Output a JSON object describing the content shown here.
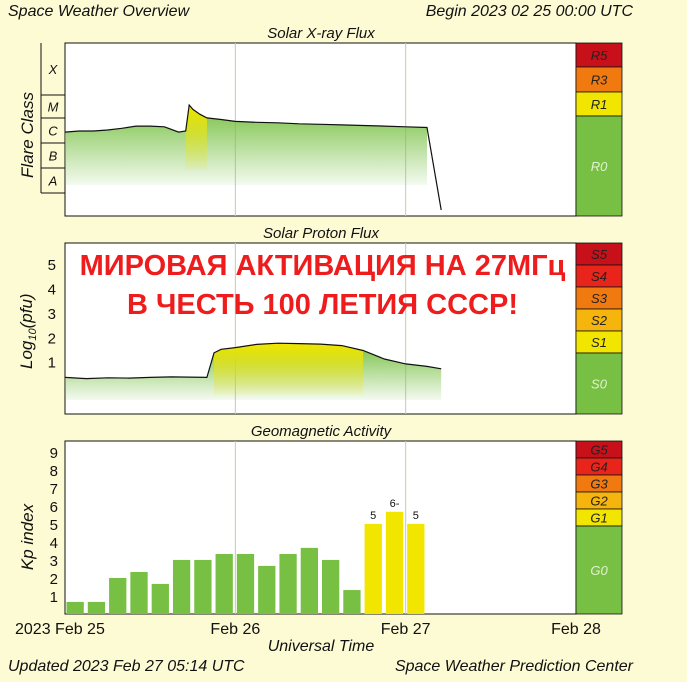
{
  "header": {
    "title": "Space Weather Overview",
    "begin": "Begin 2023 02 25 00:00 UTC"
  },
  "footer": {
    "updated": "Updated 2023 Feb 27 05:14 UTC",
    "source": "Space Weather Prediction Center"
  },
  "overlay": {
    "line1": "МИРОВАЯ АКТИВАЦИЯ НА 27МГц",
    "line2": "В ЧЕСТЬ 100 ЛЕТИЯ СССР!"
  },
  "colors": {
    "background": "#fdfbd4",
    "green": "#77c043",
    "yellow": "#f2e600",
    "amber": "#f5b50c",
    "orange": "#f17a10",
    "red": "#e8241b",
    "darkred": "#c8101a",
    "overlay_text": "#ee1c1c"
  },
  "chart_data": [
    {
      "type": "area",
      "title": "Solar X-ray Flux",
      "ylabel": "Flare Class",
      "y_scale": "log",
      "ytick_labels": [
        "A",
        "B",
        "C",
        "M",
        "X"
      ],
      "x": [
        "2023-02-25T00:00",
        "2023-02-25T02:00",
        "2023-02-25T04:00",
        "2023-02-25T06:00",
        "2023-02-25T08:00",
        "2023-02-25T10:00",
        "2023-02-25T12:00",
        "2023-02-25T14:00",
        "2023-02-25T16:00",
        "2023-02-25T17:00",
        "2023-02-25T17:30",
        "2023-02-25T18:00",
        "2023-02-25T19:00",
        "2023-02-25T20:00",
        "2023-02-25T22:00",
        "2023-02-26T00:00",
        "2023-02-26T03:00",
        "2023-02-26T06:00",
        "2023-02-26T09:00",
        "2023-02-26T12:00",
        "2023-02-26T15:00",
        "2023-02-26T18:00",
        "2023-02-26T21:00",
        "2023-02-27T00:00",
        "2023-02-27T03:00",
        "2023-02-27T05:00"
      ],
      "values": [
        "B9",
        "C1",
        "C1",
        "C1.1",
        "C1.3",
        "C1.6",
        "C1.6",
        "C1.5",
        "B9",
        "C1",
        "M1.1",
        "C8",
        "C5",
        "C3.5",
        "C3",
        "C2.5",
        "C2.3",
        "C2.2",
        "C2",
        "C1.9",
        "C1.8",
        "C1.7",
        "C1.6",
        "C1.5",
        "C1.4",
        "A"
      ],
      "scale_levels": [
        {
          "label": "R5",
          "color": "#c8101a"
        },
        {
          "label": "R3",
          "color": "#f17a10"
        },
        {
          "label": "R1",
          "color": "#f2e600"
        },
        {
          "label": "R0",
          "color": "#77c043"
        }
      ]
    },
    {
      "type": "area",
      "title": "Solar Proton Flux",
      "ylabel": "Log10(pfu)",
      "yticks": [
        1,
        2,
        3,
        4,
        5
      ],
      "ylim": [
        -1.1,
        5.9
      ],
      "x": [
        "2023-02-25T00:00",
        "2023-02-25T03:00",
        "2023-02-25T06:00",
        "2023-02-25T09:00",
        "2023-02-25T12:00",
        "2023-02-25T15:00",
        "2023-02-25T20:00",
        "2023-02-25T21:00",
        "2023-02-25T22:00",
        "2023-02-26T00:00",
        "2023-02-26T03:00",
        "2023-02-26T06:00",
        "2023-02-26T09:00",
        "2023-02-26T12:00",
        "2023-02-26T15:00",
        "2023-02-26T18:00",
        "2023-02-26T21:00",
        "2023-02-27T00:00",
        "2023-02-27T03:00",
        "2023-02-27T05:00"
      ],
      "values": [
        0.4,
        0.35,
        0.38,
        0.37,
        0.4,
        0.42,
        0.4,
        1.4,
        1.55,
        1.62,
        1.75,
        1.8,
        1.78,
        1.76,
        1.7,
        1.5,
        1.15,
        0.95,
        0.85,
        0.75
      ],
      "scale_levels": [
        {
          "label": "S5",
          "color": "#c8101a"
        },
        {
          "label": "S4",
          "color": "#e8241b"
        },
        {
          "label": "S3",
          "color": "#f17a10"
        },
        {
          "label": "S2",
          "color": "#f5b50c"
        },
        {
          "label": "S1",
          "color": "#f2e600"
        },
        {
          "label": "S0",
          "color": "#77c043"
        }
      ]
    },
    {
      "type": "bar",
      "title": "Geomagnetic Activity",
      "ylabel": "Kp index",
      "xlabel": "Universal Time",
      "ylim": [
        0,
        9.6
      ],
      "yticks": [
        1,
        2,
        3,
        4,
        5,
        6,
        7,
        8,
        9
      ],
      "xtick_labels": [
        "2023 Feb 25",
        "Feb 26",
        "Feb 27",
        "Feb 28"
      ],
      "categories": [
        "02-25 00",
        "02-25 03",
        "02-25 06",
        "02-25 09",
        "02-25 12",
        "02-25 15",
        "02-25 18",
        "02-25 21",
        "02-26 00",
        "02-26 03",
        "02-26 06",
        "02-26 09",
        "02-26 12",
        "02-26 15",
        "02-26 18",
        "02-26 21",
        "02-27 00",
        "02-27 03"
      ],
      "values": [
        0.67,
        0.67,
        2,
        2.33,
        1.67,
        3,
        3,
        3.33,
        3.33,
        2.67,
        3.33,
        3.67,
        3,
        1.33,
        5,
        5.67,
        5,
        0
      ],
      "bar_labels": [
        "",
        "",
        "",
        "",
        "",
        "",
        "",
        "",
        "",
        "",
        "",
        "",
        "",
        "",
        "5",
        "6-",
        "5",
        ""
      ],
      "scale_levels": [
        {
          "label": "G5",
          "color": "#c8101a"
        },
        {
          "label": "G4",
          "color": "#e8241b"
        },
        {
          "label": "G3",
          "color": "#f17a10"
        },
        {
          "label": "G2",
          "color": "#f5b50c"
        },
        {
          "label": "G1",
          "color": "#f2e600"
        },
        {
          "label": "G0",
          "color": "#77c043"
        }
      ]
    }
  ]
}
